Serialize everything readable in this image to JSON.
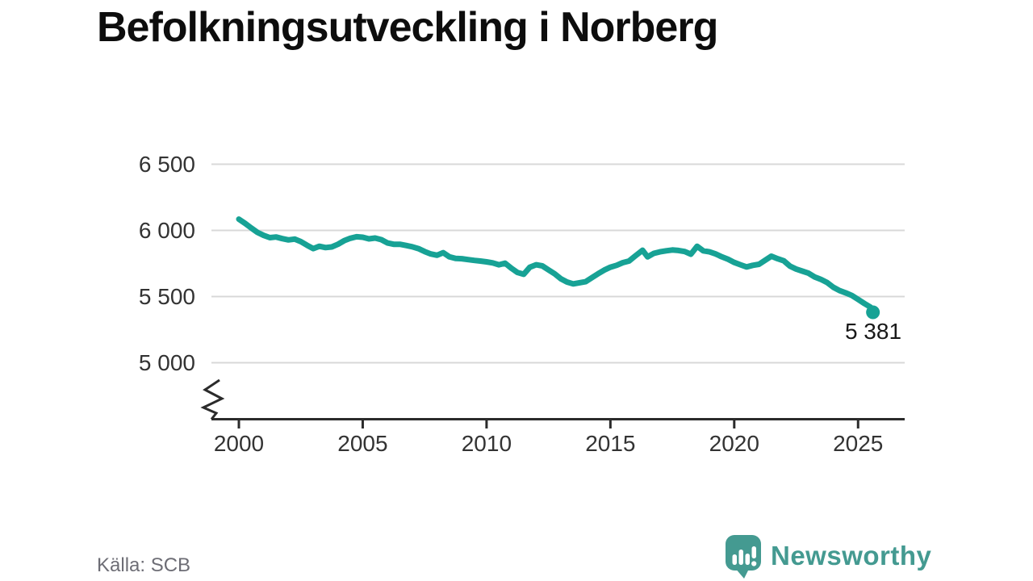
{
  "title": "Befolkningsutveckling i Norberg",
  "source": "Källa: SCB",
  "brand": {
    "name": "Newsworthy",
    "color": "#449a91"
  },
  "chart_data": {
    "type": "line",
    "title": "Befolkningsutveckling i Norberg",
    "xlabel": "",
    "ylabel": "",
    "grid": true,
    "axis_break": true,
    "line_color": "#17a295",
    "x_ticks": [
      2000,
      2005,
      2010,
      2015,
      2020,
      2025
    ],
    "x_tick_labels": [
      "2000",
      "2005",
      "2010",
      "2015",
      "2020",
      "2025"
    ],
    "y_ticks": [
      6500,
      6000,
      5500,
      5000
    ],
    "y_tick_labels": [
      "6 500",
      "6 000",
      "5 500",
      "5 000"
    ],
    "ylim_shown": [
      5000,
      6500
    ],
    "end_label": "5 381",
    "end_value": 5381,
    "series": [
      {
        "name": "Befolkning i Norberg",
        "points": [
          [
            2000.0,
            6085
          ],
          [
            2000.25,
            6053
          ],
          [
            2000.5,
            6018
          ],
          [
            2000.75,
            5985
          ],
          [
            2001.0,
            5962
          ],
          [
            2001.25,
            5945
          ],
          [
            2001.5,
            5950
          ],
          [
            2001.75,
            5938
          ],
          [
            2002.0,
            5928
          ],
          [
            2002.25,
            5934
          ],
          [
            2002.5,
            5915
          ],
          [
            2002.75,
            5888
          ],
          [
            2003.0,
            5862
          ],
          [
            2003.25,
            5880
          ],
          [
            2003.5,
            5870
          ],
          [
            2003.75,
            5875
          ],
          [
            2004.0,
            5895
          ],
          [
            2004.25,
            5922
          ],
          [
            2004.5,
            5940
          ],
          [
            2004.75,
            5952
          ],
          [
            2005.0,
            5948
          ],
          [
            2005.25,
            5936
          ],
          [
            2005.5,
            5942
          ],
          [
            2005.75,
            5930
          ],
          [
            2006.0,
            5905
          ],
          [
            2006.25,
            5895
          ],
          [
            2006.5,
            5895
          ],
          [
            2006.75,
            5886
          ],
          [
            2007.0,
            5876
          ],
          [
            2007.25,
            5862
          ],
          [
            2007.5,
            5840
          ],
          [
            2007.75,
            5822
          ],
          [
            2008.0,
            5812
          ],
          [
            2008.25,
            5832
          ],
          [
            2008.5,
            5800
          ],
          [
            2008.75,
            5788
          ],
          [
            2009.0,
            5786
          ],
          [
            2009.25,
            5779
          ],
          [
            2009.5,
            5773
          ],
          [
            2009.75,
            5768
          ],
          [
            2010.0,
            5762
          ],
          [
            2010.25,
            5754
          ],
          [
            2010.5,
            5740
          ],
          [
            2010.75,
            5752
          ],
          [
            2011.0,
            5714
          ],
          [
            2011.25,
            5682
          ],
          [
            2011.5,
            5668
          ],
          [
            2011.75,
            5722
          ],
          [
            2012.0,
            5740
          ],
          [
            2012.25,
            5732
          ],
          [
            2012.5,
            5702
          ],
          [
            2012.75,
            5672
          ],
          [
            2013.0,
            5634
          ],
          [
            2013.25,
            5610
          ],
          [
            2013.5,
            5596
          ],
          [
            2013.75,
            5604
          ],
          [
            2014.0,
            5612
          ],
          [
            2014.25,
            5642
          ],
          [
            2014.5,
            5672
          ],
          [
            2014.75,
            5700
          ],
          [
            2015.0,
            5722
          ],
          [
            2015.25,
            5736
          ],
          [
            2015.5,
            5756
          ],
          [
            2015.75,
            5768
          ],
          [
            2016.0,
            5806
          ],
          [
            2016.3,
            5850
          ],
          [
            2016.5,
            5800
          ],
          [
            2016.75,
            5826
          ],
          [
            2017.0,
            5838
          ],
          [
            2017.25,
            5846
          ],
          [
            2017.5,
            5852
          ],
          [
            2017.75,
            5848
          ],
          [
            2018.0,
            5840
          ],
          [
            2018.25,
            5820
          ],
          [
            2018.5,
            5880
          ],
          [
            2018.75,
            5846
          ],
          [
            2019.0,
            5838
          ],
          [
            2019.25,
            5822
          ],
          [
            2019.5,
            5800
          ],
          [
            2019.75,
            5782
          ],
          [
            2020.0,
            5758
          ],
          [
            2020.25,
            5740
          ],
          [
            2020.5,
            5724
          ],
          [
            2020.75,
            5736
          ],
          [
            2021.0,
            5744
          ],
          [
            2021.25,
            5775
          ],
          [
            2021.5,
            5805
          ],
          [
            2021.75,
            5786
          ],
          [
            2022.0,
            5770
          ],
          [
            2022.25,
            5730
          ],
          [
            2022.5,
            5708
          ],
          [
            2022.75,
            5692
          ],
          [
            2023.0,
            5676
          ],
          [
            2023.25,
            5648
          ],
          [
            2023.5,
            5630
          ],
          [
            2023.75,
            5606
          ],
          [
            2024.0,
            5570
          ],
          [
            2024.25,
            5545
          ],
          [
            2024.5,
            5528
          ],
          [
            2024.75,
            5508
          ],
          [
            2025.0,
            5478
          ],
          [
            2025.25,
            5448
          ],
          [
            2025.5,
            5420
          ],
          [
            2025.6,
            5381
          ]
        ]
      }
    ]
  }
}
